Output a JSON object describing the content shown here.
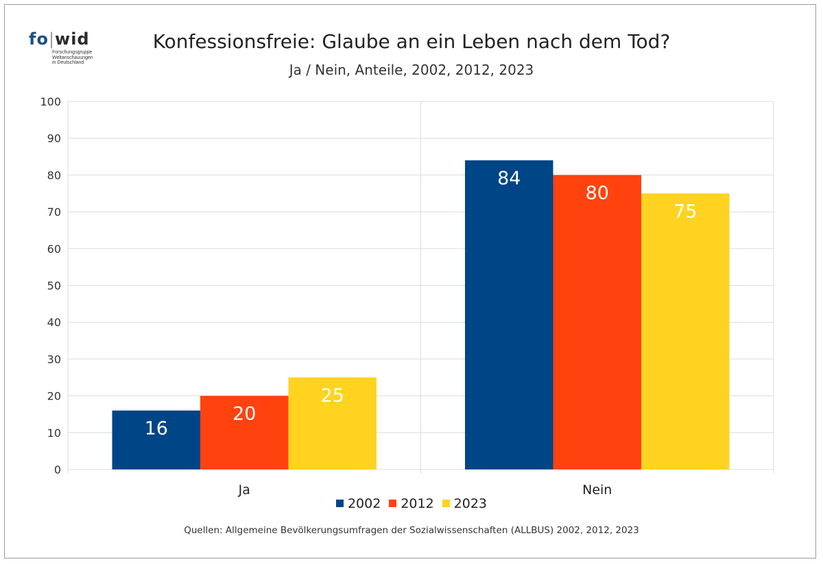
{
  "logo": {
    "name_fo": "fo",
    "name_wid": "wid",
    "subtitle_lines": [
      "Forschungsgruppe",
      "Weltanschauungen",
      "in Deutschland"
    ]
  },
  "header": {
    "title": "Konfessionsfreie: Glaube an ein Leben nach dem Tod?",
    "subtitle": "Ja / Nein, Anteile, 2002, 2012, 2023"
  },
  "footer": {
    "source": "Quellen: Allgemeine Bevölkerungsumfragen der Sozialwissenschaften (ALLBUS) 2002, 2012, 2023"
  },
  "chart_data": {
    "type": "bar",
    "categories": [
      "Ja",
      "Nein"
    ],
    "series": [
      {
        "name": "2002",
        "values": [
          16,
          84
        ],
        "color": "#004586"
      },
      {
        "name": "2012",
        "values": [
          20,
          80
        ],
        "color": "#ff420e"
      },
      {
        "name": "2023",
        "values": [
          25,
          75
        ],
        "color": "#ffd320"
      }
    ],
    "title": "Konfessionsfreie: Glaube an ein Leben nach dem Tod?",
    "subtitle": "Ja / Nein, Anteile, 2002, 2012, 2023",
    "xlabel": "",
    "ylabel": "",
    "ylim": [
      0,
      100
    ],
    "yticks": [
      0,
      10,
      20,
      30,
      40,
      50,
      60,
      70,
      80,
      90,
      100
    ],
    "grid": true,
    "legend": "bottom",
    "data_labels": true
  }
}
